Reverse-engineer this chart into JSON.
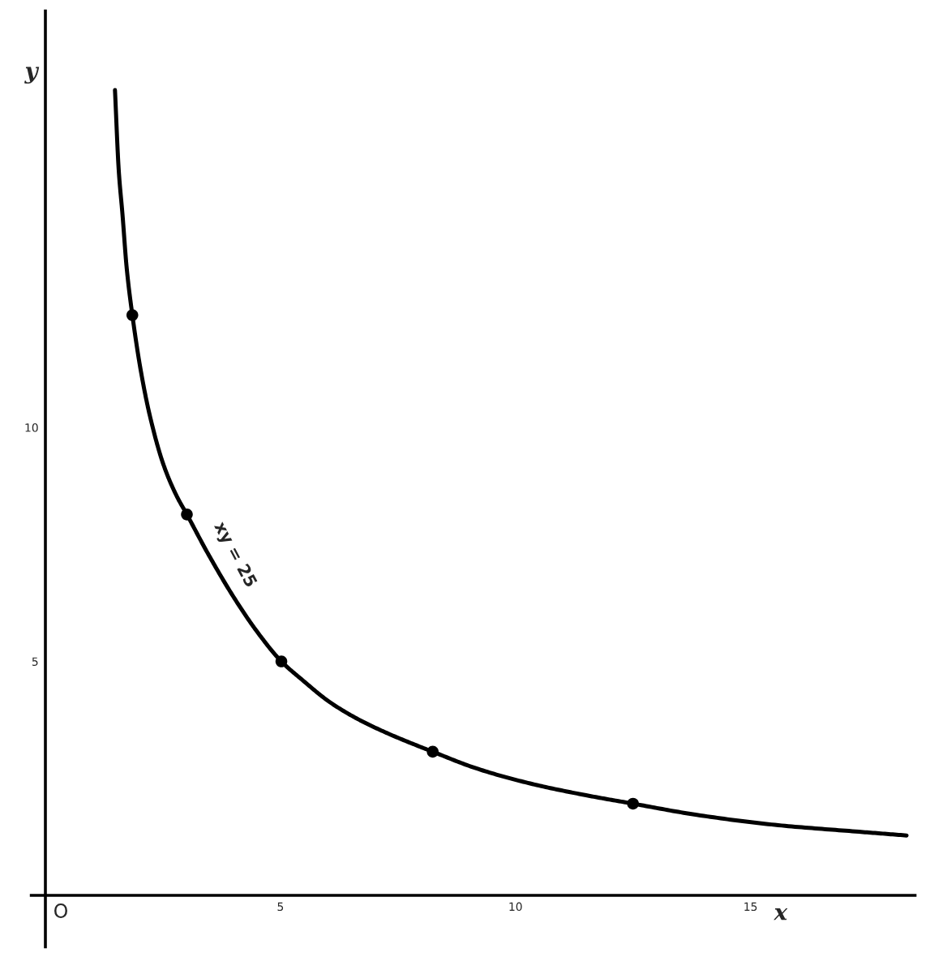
{
  "chart_data": {
    "type": "line",
    "xlabel": "x",
    "ylabel": "y",
    "xlim": [
      -0.3,
      18.5
    ],
    "ylim": [
      -1.1,
      18.9
    ],
    "xticks": [
      5,
      10,
      15
    ],
    "yticks": [
      5,
      10
    ],
    "grid": false,
    "annotations": [
      "O",
      {
        "text": "xy = 25",
        "x": 3.5,
        "y": 7.2
      }
    ],
    "series": [
      {
        "color": "#000000",
        "marker": "none",
        "x": [
          1.48,
          1.56,
          1.64,
          1.73,
          1.85,
          2.03,
          2.22,
          2.51,
          2.79,
          3.01,
          3.46,
          4.02,
          4.5,
          5.02,
          5.47,
          6.05,
          6.68,
          7.31,
          8.24,
          9.21,
          10.36,
          11.5,
          12.5,
          13.86,
          15.59,
          17.31,
          18.32
        ],
        "values": [
          17.21,
          15.5,
          14.55,
          13.4,
          12.4,
          11.21,
          10.26,
          9.21,
          8.54,
          8.14,
          7.3,
          6.35,
          5.64,
          5.0,
          4.6,
          4.13,
          3.75,
          3.45,
          3.07,
          2.7,
          2.38,
          2.14,
          1.96,
          1.72,
          1.5,
          1.36,
          1.28
        ]
      },
      {
        "type": "scatter",
        "color": "#000000",
        "marker": "circle",
        "x": [
          1.85,
          3.01,
          5.02,
          8.24,
          12.5
        ],
        "values": [
          12.4,
          8.14,
          5.0,
          3.07,
          1.96
        ]
      }
    ]
  }
}
